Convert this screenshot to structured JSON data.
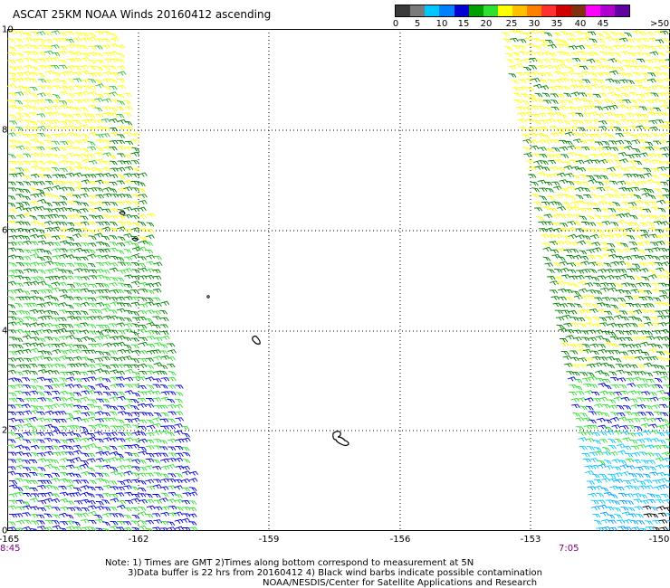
{
  "title": "ASCAT 25KM NOAA Winds 20160412 ascending",
  "legend": {
    "colors": [
      "#3a3a3a",
      "#7a7a7a",
      "#00c8ff",
      "#0080ff",
      "#0000d0",
      "#00a000",
      "#30e030",
      "#ffff00",
      "#ffc000",
      "#ff8000",
      "#ff3030",
      "#d00000",
      "#803010",
      "#ff00ff",
      "#b000d0",
      "#6000a0"
    ],
    "labels": [
      "0",
      "5",
      "10",
      "15",
      "20",
      "25",
      "30",
      "35",
      "40",
      "45",
      ">50 knots"
    ]
  },
  "map": {
    "lat_labels": [
      "10",
      "8",
      "6",
      "4",
      "2",
      "0"
    ],
    "lon_labels": [
      "-165",
      "-162",
      "-159",
      "-156",
      "-153",
      "-150"
    ],
    "time_labels": [
      "8:45",
      "7:05"
    ]
  },
  "notes": [
    "Note: 1) Times are GMT 2)Times along bottom correspond to measurement at 5N",
    "3)Data buffer is 22 hrs from 20160412 4) Black wind barbs indicate possible contamination",
    "NOAA/NESDIS/Center for Satellite Applications and Research"
  ]
}
